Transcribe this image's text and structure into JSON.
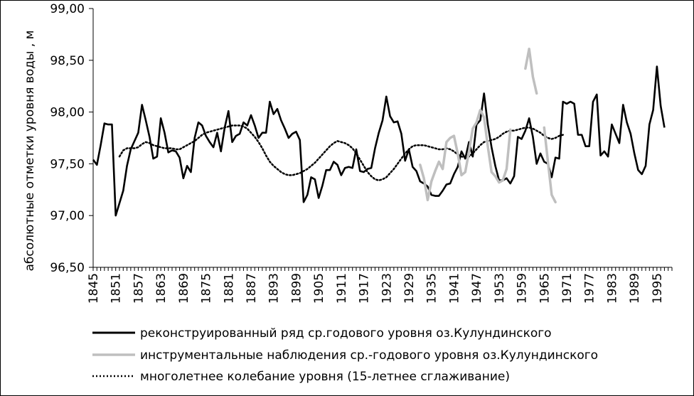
{
  "chart_data": {
    "type": "line",
    "ylabel": "абсолютные отметки уровня воды , м",
    "ylim": [
      96.5,
      99.0
    ],
    "y_ticks": [
      "96,50",
      "97,00",
      "97,50",
      "98,00",
      "98,50",
      "99,00"
    ],
    "y_tick_values": [
      96.5,
      97.0,
      97.5,
      98.0,
      98.5,
      99.0
    ],
    "xlim": [
      1845,
      1999
    ],
    "x_ticks": [
      "1845",
      "1851",
      "1857",
      "1863",
      "1869",
      "1875",
      "1881",
      "1887",
      "1893",
      "1899",
      "1905",
      "1911",
      "1917",
      "1923",
      "1929",
      "1935",
      "1941",
      "1947",
      "1953",
      "1959",
      "1965",
      "1971",
      "1977",
      "1983",
      "1989",
      "1995"
    ],
    "grid": false,
    "legend_position": "bottom",
    "series": [
      {
        "name": "реконструированный ряд ср.годового уровня оз.Кулундинского",
        "color": "#000000",
        "style": "solid",
        "x_start": 1845,
        "values": [
          97.54,
          97.49,
          97.68,
          97.89,
          97.88,
          97.88,
          97.0,
          97.12,
          97.24,
          97.48,
          97.64,
          97.72,
          97.8,
          98.07,
          97.92,
          97.76,
          97.55,
          97.57,
          97.94,
          97.8,
          97.61,
          97.63,
          97.62,
          97.56,
          97.36,
          97.48,
          97.42,
          97.75,
          97.9,
          97.87,
          97.77,
          97.71,
          97.66,
          97.8,
          97.62,
          97.85,
          98.01,
          97.71,
          97.77,
          97.79,
          97.9,
          97.87,
          97.97,
          97.87,
          97.75,
          97.8,
          97.8,
          98.1,
          97.98,
          98.03,
          97.92,
          97.84,
          97.75,
          97.79,
          97.81,
          97.73,
          97.13,
          97.2,
          97.37,
          97.35,
          97.17,
          97.29,
          97.44,
          97.44,
          97.52,
          97.49,
          97.39,
          97.46,
          97.47,
          97.46,
          97.64,
          97.43,
          97.42,
          97.45,
          97.46,
          97.65,
          97.8,
          97.92,
          98.15,
          97.96,
          97.9,
          97.91,
          97.79,
          97.53,
          97.64,
          97.47,
          97.43,
          97.33,
          97.31,
          97.28,
          97.2,
          97.19,
          97.19,
          97.24,
          97.3,
          97.31,
          97.4,
          97.47,
          97.62,
          97.55,
          97.71,
          97.57,
          97.88,
          97.92,
          98.18,
          97.88,
          97.66,
          97.48,
          97.34,
          97.34,
          97.36,
          97.31,
          97.38,
          97.76,
          97.74,
          97.82,
          97.94,
          97.76,
          97.5,
          97.6,
          97.52,
          97.5,
          97.37,
          97.56,
          97.55,
          98.1,
          98.08,
          98.1,
          98.08,
          97.78,
          97.78,
          97.67,
          97.67,
          98.1,
          98.17,
          97.58,
          97.62,
          97.57,
          97.88,
          97.79,
          97.7,
          98.07,
          97.9,
          97.79,
          97.6,
          97.44,
          97.4,
          97.48,
          97.88,
          98.02,
          98.44,
          98.06,
          97.85
        ]
      },
      {
        "name": "инструментальные наблюдения ср.-годового уровня оз.Кулундинского",
        "color": "#bfbfbf",
        "style": "solid",
        "segments": [
          {
            "x_start": 1932,
            "values": [
              97.49,
              97.36,
              97.15,
              97.33,
              97.43,
              97.52,
              97.45,
              97.71,
              97.75,
              97.77,
              97.6,
              97.39,
              97.42,
              97.62,
              97.84,
              97.9,
              98.02,
              97.95,
              97.67,
              97.42,
              97.38,
              97.32,
              97.34,
              97.45,
              97.83
            ]
          },
          {
            "x_start": 1960,
            "values": [
              98.42,
              98.61,
              98.34,
              98.18
            ]
          },
          {
            "x_start": 1965,
            "values": [
              97.85,
              97.52,
              97.2,
              97.13
            ]
          }
        ]
      },
      {
        "name": "многолетнее колебание уровня (15-летнее сглаживание)",
        "color": "#000000",
        "style": "dotted",
        "x_start": 1852,
        "values": [
          97.57,
          97.63,
          97.65,
          97.65,
          97.65,
          97.66,
          97.69,
          97.71,
          97.7,
          97.68,
          97.67,
          97.66,
          97.65,
          97.65,
          97.65,
          97.64,
          97.64,
          97.66,
          97.68,
          97.7,
          97.72,
          97.75,
          97.78,
          97.8,
          97.81,
          97.82,
          97.83,
          97.84,
          97.85,
          97.86,
          97.87,
          97.87,
          97.87,
          97.86,
          97.84,
          97.8,
          97.76,
          97.71,
          97.65,
          97.58,
          97.52,
          97.48,
          97.45,
          97.42,
          97.4,
          97.39,
          97.39,
          97.4,
          97.41,
          97.43,
          97.45,
          97.48,
          97.51,
          97.55,
          97.59,
          97.63,
          97.67,
          97.7,
          97.72,
          97.71,
          97.7,
          97.68,
          97.65,
          97.6,
          97.54,
          97.48,
          97.42,
          97.38,
          97.35,
          97.34,
          97.35,
          97.37,
          97.41,
          97.45,
          97.5,
          97.55,
          97.6,
          97.64,
          97.67,
          97.68,
          97.68,
          97.68,
          97.67,
          97.66,
          97.65,
          97.64,
          97.64,
          97.65,
          97.64,
          97.62,
          97.59,
          97.57,
          97.56,
          97.57,
          97.6,
          97.64,
          97.68,
          97.71,
          97.72,
          97.73,
          97.74,
          97.76,
          97.79,
          97.81,
          97.82,
          97.82,
          97.83,
          97.84,
          97.85,
          97.85,
          97.84,
          97.82,
          97.8,
          97.77,
          97.75,
          97.74,
          97.75,
          97.77,
          97.78
        ]
      }
    ]
  }
}
